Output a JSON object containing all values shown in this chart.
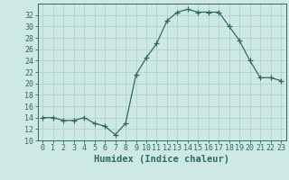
{
  "x": [
    0,
    1,
    2,
    3,
    4,
    5,
    6,
    7,
    8,
    9,
    10,
    11,
    12,
    13,
    14,
    15,
    16,
    17,
    18,
    19,
    20,
    21,
    22,
    23
  ],
  "y": [
    14,
    14,
    13.5,
    13.5,
    14,
    13,
    12.5,
    11,
    13,
    21.5,
    24.5,
    27,
    31,
    32.5,
    33,
    32.5,
    32.5,
    32.5,
    30,
    27.5,
    24,
    21,
    21,
    20.5
  ],
  "line_color": "#2e6b5e",
  "marker": "+",
  "marker_size": 4,
  "bg_color": "#cde8e5",
  "grid_color": "#aacfcc",
  "xlabel": "Humidex (Indice chaleur)",
  "xlim": [
    -0.5,
    23.5
  ],
  "ylim": [
    10,
    34
  ],
  "yticks": [
    10,
    12,
    14,
    16,
    18,
    20,
    22,
    24,
    26,
    28,
    30,
    32
  ],
  "xticks": [
    0,
    1,
    2,
    3,
    4,
    5,
    6,
    7,
    8,
    9,
    10,
    11,
    12,
    13,
    14,
    15,
    16,
    17,
    18,
    19,
    20,
    21,
    22,
    23
  ],
  "tick_color": "#2e6b5e",
  "xlabel_fontsize": 7.5,
  "tick_labelsize": 6
}
